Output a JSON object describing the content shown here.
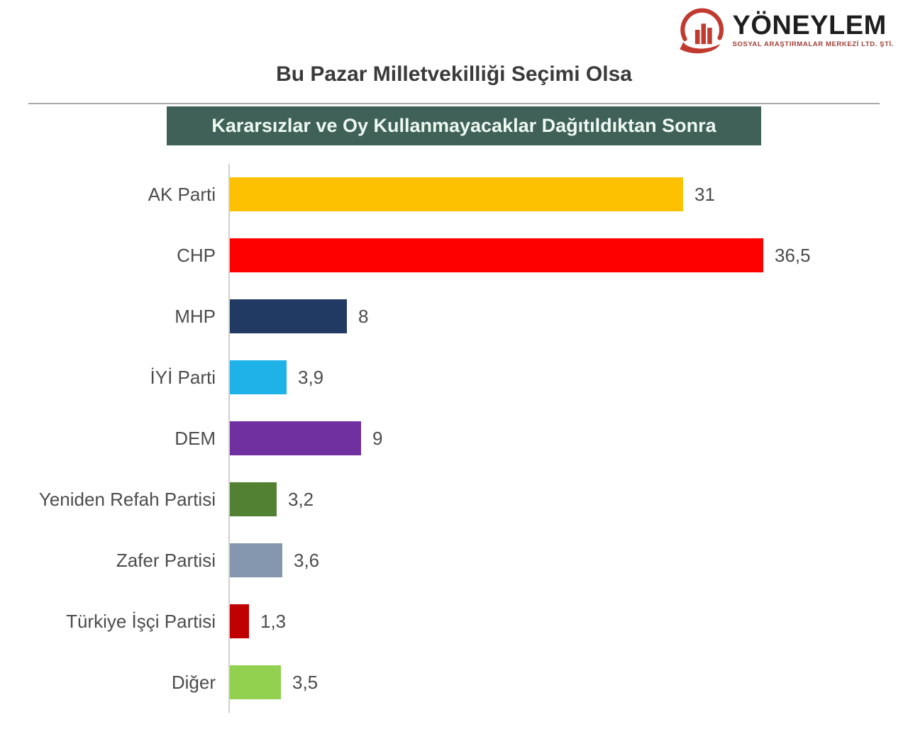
{
  "logo": {
    "brand": "YÖNEYLEM",
    "tagline": "SOSYAL ARAŞTIRMALAR MERKEZİ LTD. ŞTİ.",
    "icon": "bar-chart-arc-hand-icon",
    "accent_color": "#c13a30"
  },
  "title": "Bu Pazar Milletvekilliği Seçimi Olsa",
  "banner": {
    "label": "Kararsızlar ve Oy Kullanmayacaklar Dağıtıldıktan Sonra",
    "background": "#3f6157",
    "text_color": "#eef8f3"
  },
  "chart_data": {
    "type": "bar",
    "orientation": "horizontal",
    "title": "Bu Pazar Milletvekilliği Seçimi Olsa",
    "subtitle": "Kararsızlar ve Oy Kullanmayacaklar Dağıtıldıktan Sonra",
    "categories": [
      "AK Parti",
      "CHP",
      "MHP",
      "İYİ Parti",
      "DEM",
      "Yeniden Refah Partisi",
      "Zafer Partisi",
      "Türkiye İşçi Partisi",
      "Diğer"
    ],
    "values": [
      31,
      36.5,
      8,
      3.9,
      9,
      3.2,
      3.6,
      1.3,
      3.5
    ],
    "value_labels": [
      "31",
      "36,5",
      "8",
      "3,9",
      "9",
      "3,2",
      "3,6",
      "1,3",
      "3,5"
    ],
    "bar_colors": [
      "#fdc101",
      "#fe0000",
      "#213a63",
      "#1eb2e8",
      "#7030a0",
      "#538134",
      "#8497af",
      "#c00000",
      "#92d050"
    ],
    "slugs": [
      "ak-parti",
      "chp",
      "mhp",
      "iyi-parti",
      "dem",
      "yeniden-refah-partisi",
      "zafer-partisi",
      "turkiye-isci-partisi",
      "diger"
    ],
    "xlim": [
      0,
      40
    ],
    "grid": false,
    "legend": false,
    "axis_line_color": "#cfcfcf"
  }
}
